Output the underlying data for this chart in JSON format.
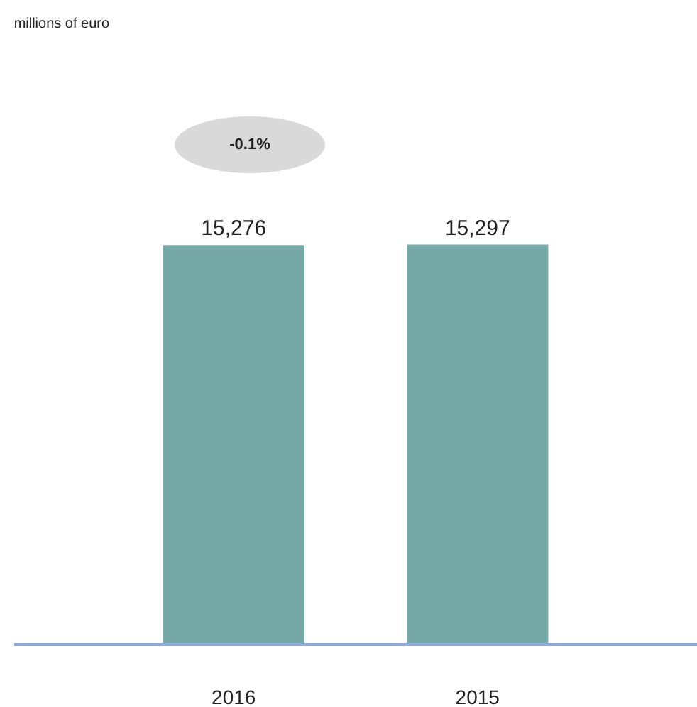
{
  "chart_data": {
    "type": "bar",
    "title": "millions of euro",
    "categories": [
      "2016",
      "2015"
    ],
    "values": [
      15276,
      15297
    ],
    "color": "#76a8a8",
    "value_labels": [
      "15,276",
      "15,297"
    ],
    "annotations": [
      "-0.1%"
    ]
  }
}
